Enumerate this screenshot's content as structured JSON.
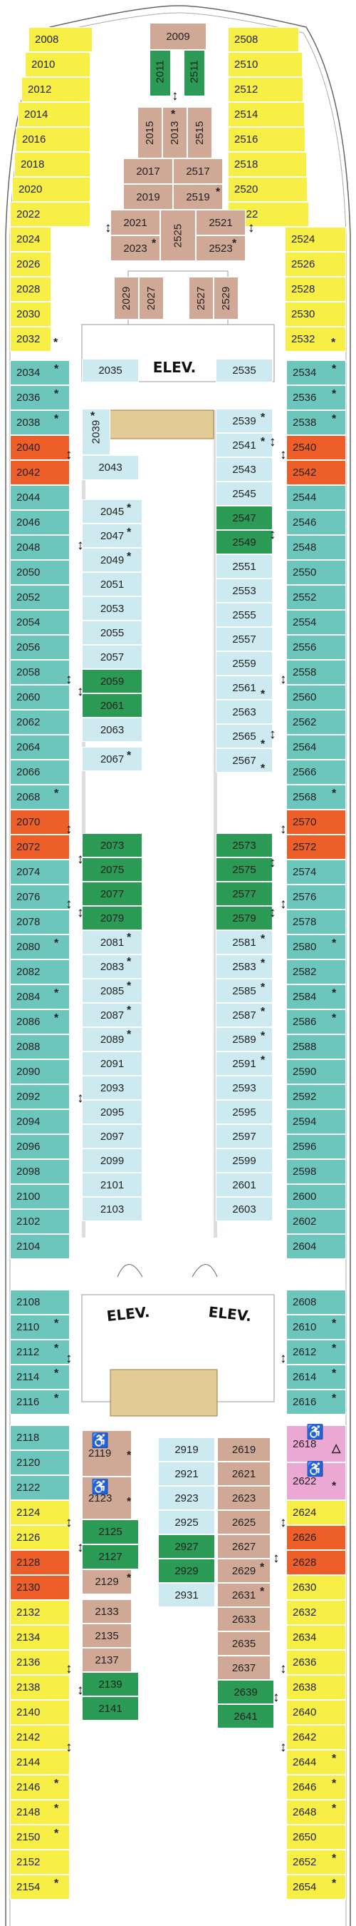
{
  "palette": {
    "yellow": "#f7ee46",
    "teal": "#6cc6bc",
    "lightblue": "#cdeaf0",
    "tan": "#cfa896",
    "green": "#2a9a55",
    "orange": "#ee5e28",
    "pink": "#eba8d2",
    "beige": "#e3cb96"
  },
  "elevator_label": "ELEV.",
  "symbols": {
    "star": "*",
    "connecting": "↕",
    "accessible": "♿",
    "triangle": "△"
  },
  "cabins": {
    "forward_port": [
      "2008",
      "2010",
      "2012",
      "2014",
      "2016",
      "2018",
      "2020",
      "2022",
      "2024",
      "2026",
      "2028",
      "2030",
      "2032"
    ],
    "forward_starboard": [
      "2508",
      "2510",
      "2512",
      "2514",
      "2516",
      "2518",
      "2520",
      "2522",
      "2524",
      "2526",
      "2528",
      "2530",
      "2532"
    ],
    "bow_center": [
      "2009",
      "2011",
      "2511",
      "2015",
      "2013",
      "2515",
      "2017",
      "2517",
      "2019",
      "2519",
      "2021",
      "2023",
      "2525",
      "2521",
      "2523",
      "2029",
      "2027",
      "2527",
      "2529"
    ],
    "port_outer_1": [
      "2034",
      "2036",
      "2038",
      "2040",
      "2042",
      "2044",
      "2046",
      "2048",
      "2050",
      "2052",
      "2054",
      "2056",
      "2058",
      "2060",
      "2062",
      "2064",
      "2066",
      "2068",
      "2070",
      "2072",
      "2074",
      "2076",
      "2078",
      "2080",
      "2082",
      "2084",
      "2086",
      "2088",
      "2090",
      "2092",
      "2094",
      "2096",
      "2098",
      "2100",
      "2102",
      "2104"
    ],
    "stbd_outer_1": [
      "2534",
      "2536",
      "2538",
      "2540",
      "2542",
      "2544",
      "2546",
      "2548",
      "2550",
      "2552",
      "2554",
      "2556",
      "2558",
      "2560",
      "2562",
      "2564",
      "2566",
      "2568",
      "2570",
      "2572",
      "2574",
      "2576",
      "2578",
      "2580",
      "2582",
      "2584",
      "2586",
      "2588",
      "2590",
      "2592",
      "2594",
      "2596",
      "2598",
      "2600",
      "2602",
      "2604"
    ],
    "port_inner_1": [
      "2035",
      "2039",
      "2043",
      "2045",
      "2047",
      "2049",
      "2051",
      "2053",
      "2055",
      "2057",
      "2059",
      "2061",
      "2063",
      "2067",
      "2073",
      "2075",
      "2077",
      "2079",
      "2081",
      "2083",
      "2085",
      "2087",
      "2089",
      "2091",
      "2093",
      "2095",
      "2097",
      "2099",
      "2101",
      "2103"
    ],
    "stbd_inner_1": [
      "2535",
      "2539",
      "2541",
      "2543",
      "2545",
      "2547",
      "2549",
      "2551",
      "2553",
      "2555",
      "2557",
      "2559",
      "2561",
      "2563",
      "2565",
      "2567",
      "2573",
      "2575",
      "2577",
      "2579",
      "2581",
      "2583",
      "2585",
      "2587",
      "2589",
      "2591",
      "2593",
      "2595",
      "2597",
      "2599",
      "2601",
      "2603"
    ],
    "port_outer_2": [
      "2108",
      "2110",
      "2112",
      "2114",
      "2116"
    ],
    "stbd_outer_2": [
      "2608",
      "2610",
      "2612",
      "2614",
      "2616"
    ],
    "port_outer_3": [
      "2118",
      "2120",
      "2122",
      "2124",
      "2126",
      "2128",
      "2130",
      "2132",
      "2134",
      "2136",
      "2138",
      "2140",
      "2142",
      "2144",
      "2146",
      "2148",
      "2150",
      "2152",
      "2154"
    ],
    "stbd_outer_3": [
      "2618",
      "2622",
      "2624",
      "2626",
      "2628",
      "2630",
      "2632",
      "2634",
      "2636",
      "2638",
      "2640",
      "2642",
      "2644",
      "2646",
      "2648",
      "2650",
      "2652",
      "2654"
    ],
    "aft_inner": [
      "2119",
      "2123",
      "2125",
      "2127",
      "2129",
      "2133",
      "2135",
      "2137",
      "2139",
      "2141",
      "2919",
      "2921",
      "2923",
      "2925",
      "2927",
      "2929",
      "2931",
      "2619",
      "2621",
      "2623",
      "2625",
      "2627",
      "2629",
      "2631",
      "2633",
      "2635",
      "2637",
      "2639",
      "2641"
    ]
  }
}
